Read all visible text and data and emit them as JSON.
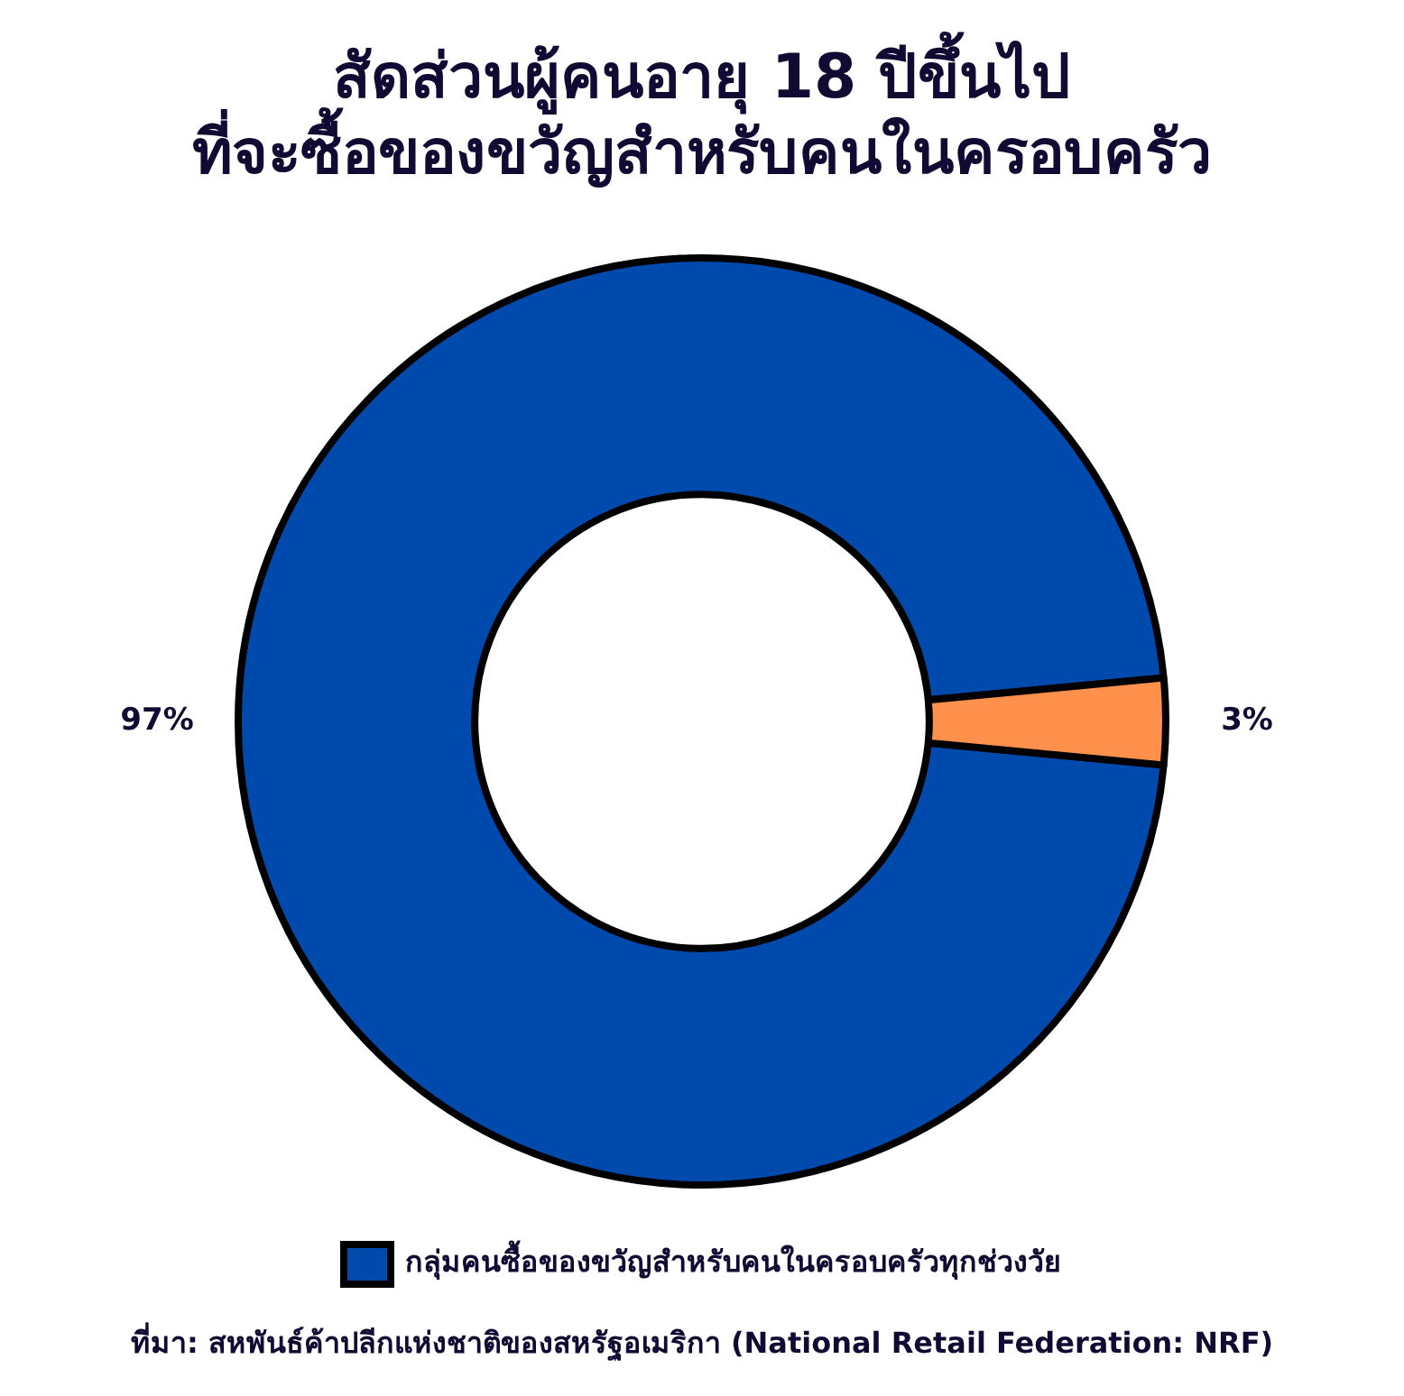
{
  "chart_data": {
    "type": "donut",
    "title": "สัดส่วนผู้คนอายุ 18 ปีขึ้นไป\nที่จะซื้อของขวัญสำหรับคนในครอบครัว",
    "categories": [
      "กลุ่มคนซื้อของขวัญสำหรับคนในครอบครัวทุกช่วงวัย",
      null
    ],
    "values": [
      97,
      3
    ],
    "colors": [
      "#004aad",
      "#ff914d"
    ],
    "value_labels": [
      "97%",
      "3%"
    ],
    "legend": "bottom",
    "annotations": [
      "ที่มา: สหพันธ์ค้าปลีกแห่งชาติของสหรัฐอเมริกา (National Retail Federation: NRF)"
    ]
  }
}
